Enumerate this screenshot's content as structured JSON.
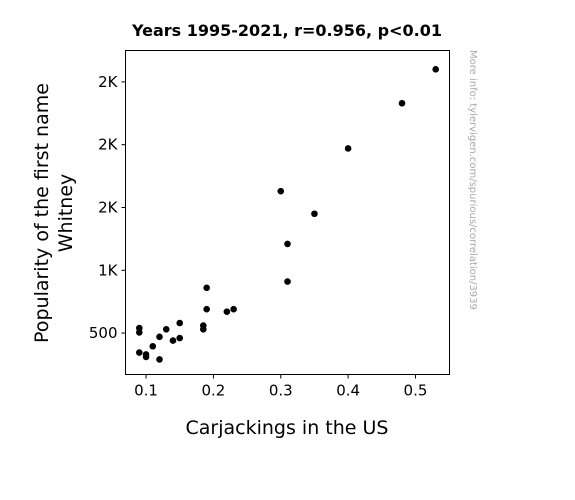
{
  "chart_data": {
    "type": "scatter",
    "title": "Years 1995-2021, r=0.956, p<0.01",
    "xlabel": "Carjackings in the US",
    "ylabel_lines": [
      "Popularity of the first name",
      "Whitney"
    ],
    "watermark": "More info: tylervigen.com/spurious/correlation/3939",
    "xlim": [
      0.0695,
      0.5505
    ],
    "ylim": [
      170,
      2750
    ],
    "x_ticks": [
      {
        "value": 0.1,
        "label": "0.1"
      },
      {
        "value": 0.2,
        "label": "0.2"
      },
      {
        "value": 0.3,
        "label": "0.3"
      },
      {
        "value": 0.4,
        "label": "0.4"
      },
      {
        "value": 0.5,
        "label": "0.5"
      }
    ],
    "y_ticks": [
      {
        "value": 500,
        "label": "500"
      },
      {
        "value": 1000,
        "label": "1K"
      },
      {
        "value": 1500,
        "label": "2K"
      },
      {
        "value": 2000,
        "label": "2K"
      },
      {
        "value": 2500,
        "label": "2K"
      }
    ],
    "grid": false,
    "point_color": "#000000",
    "points": [
      {
        "x": 0.09,
        "y": 540
      },
      {
        "x": 0.09,
        "y": 505
      },
      {
        "x": 0.09,
        "y": 345
      },
      {
        "x": 0.1,
        "y": 330
      },
      {
        "x": 0.1,
        "y": 310
      },
      {
        "x": 0.11,
        "y": 395
      },
      {
        "x": 0.12,
        "y": 470
      },
      {
        "x": 0.12,
        "y": 290
      },
      {
        "x": 0.13,
        "y": 530
      },
      {
        "x": 0.14,
        "y": 440
      },
      {
        "x": 0.15,
        "y": 580
      },
      {
        "x": 0.15,
        "y": 460
      },
      {
        "x": 0.185,
        "y": 560
      },
      {
        "x": 0.185,
        "y": 530
      },
      {
        "x": 0.19,
        "y": 860
      },
      {
        "x": 0.19,
        "y": 690
      },
      {
        "x": 0.22,
        "y": 670
      },
      {
        "x": 0.23,
        "y": 690
      },
      {
        "x": 0.3,
        "y": 1630
      },
      {
        "x": 0.31,
        "y": 1210
      },
      {
        "x": 0.31,
        "y": 910
      },
      {
        "x": 0.35,
        "y": 1450
      },
      {
        "x": 0.4,
        "y": 1970
      },
      {
        "x": 0.48,
        "y": 2330
      },
      {
        "x": 0.53,
        "y": 2600
      }
    ]
  }
}
